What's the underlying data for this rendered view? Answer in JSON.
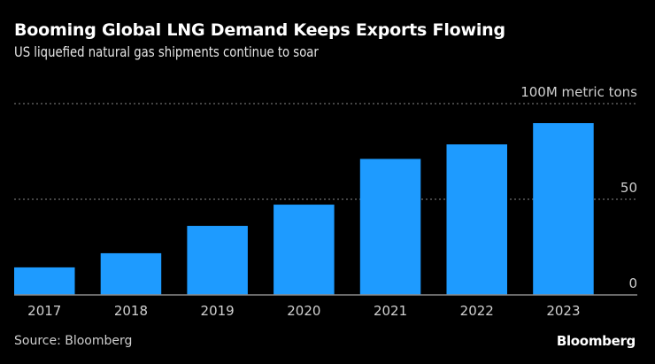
{
  "header": {
    "title": "Booming Global LNG Demand Keeps Exports Flowing",
    "subtitle": "US liquefied natural gas shipments continue to soar"
  },
  "footer": {
    "source": "Source: Bloomberg",
    "brand": "Bloomberg"
  },
  "colors": {
    "background": "#000000",
    "bar": "#1e9bff",
    "gridline": "#6e6e6e",
    "baseline": "#8a8a8a"
  },
  "chart_data": {
    "type": "bar",
    "title": "Booming Global LNG Demand Keeps Exports Flowing",
    "subtitle": "US liquefied natural gas shipments continue to soar",
    "xlabel": "",
    "ylabel": "",
    "unit_label": "100M metric tons",
    "categories": [
      "2017",
      "2018",
      "2019",
      "2020",
      "2021",
      "2022",
      "2023"
    ],
    "values": [
      14.4,
      21.8,
      36.1,
      47.2,
      71.1,
      78.7,
      89.8
    ],
    "ylim": [
      0,
      100
    ],
    "yticks": [
      0,
      50,
      100
    ],
    "ytick_labels": [
      "0",
      "50",
      "100M metric tons"
    ],
    "y_axis_side": "right",
    "grid": true,
    "legend": "none",
    "source": "Source: Bloomberg"
  }
}
